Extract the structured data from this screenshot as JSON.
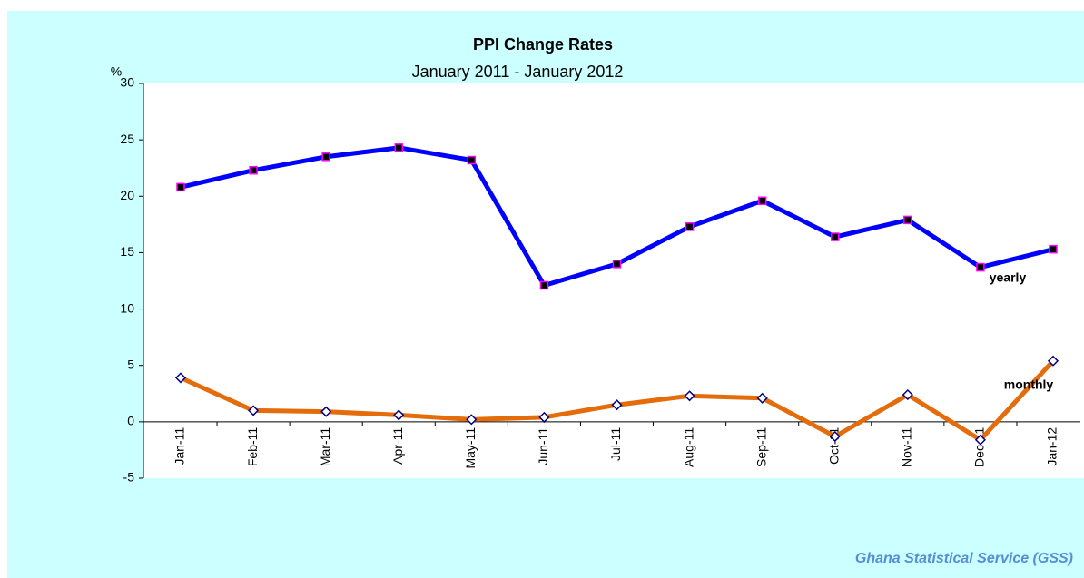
{
  "chart_data": {
    "type": "line",
    "title": "PPI Change Rates",
    "subtitle": "January 2011 - January 2012",
    "y_label": "%",
    "source": "Ghana Statistical Service (GSS)",
    "categories": [
      "Jan-11",
      "Feb-11",
      "Mar-11",
      "Apr-11",
      "May-11",
      "Jun-11",
      "Jul-11",
      "Aug-11",
      "Sep-11",
      "Oct-11",
      "Nov-11",
      "Dec-11",
      "Jan-12"
    ],
    "series": [
      {
        "name": "yearly",
        "color": "#0000ff",
        "values": [
          20.8,
          22.3,
          23.5,
          24.3,
          23.2,
          12.1,
          14.0,
          17.3,
          19.6,
          16.4,
          17.9,
          13.7,
          15.3
        ]
      },
      {
        "name": "monthly",
        "color": "#e46c0a",
        "values": [
          3.9,
          1.0,
          0.9,
          0.6,
          0.2,
          0.4,
          1.5,
          2.3,
          2.1,
          -1.3,
          2.4,
          -1.6,
          5.4
        ]
      }
    ],
    "ylim": [
      -5,
      30
    ],
    "yticks": [
      -5,
      0,
      5,
      10,
      15,
      20,
      25,
      30
    ],
    "grid": false
  }
}
